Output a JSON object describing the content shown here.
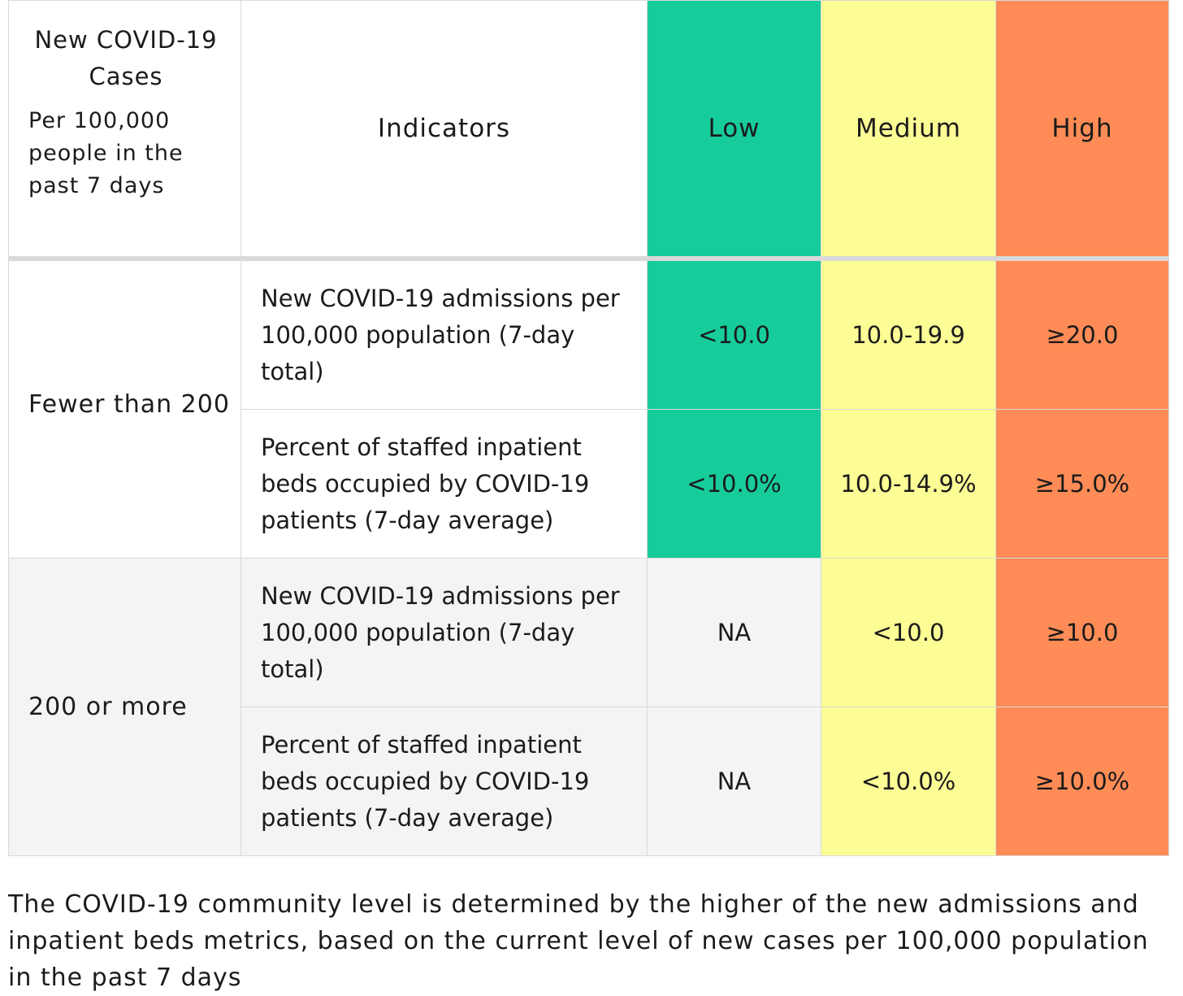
{
  "header": {
    "first_title": "New COVID-19 Cases",
    "first_subtitle": "Per 100,000 people in the past 7 days",
    "indicators": "Indicators",
    "low": "Low",
    "medium": "Medium",
    "high": "High"
  },
  "groups": [
    {
      "label": "Fewer than 200",
      "rows": [
        {
          "indicator": "New COVID-19 admissions per 100,000 population (7-day total)",
          "low": "<10.0",
          "medium": "10.0-19.9",
          "high": "≥20.0"
        },
        {
          "indicator": "Percent of staffed inpatient beds occupied by COVID-19 patients (7-day average)",
          "low": "<10.0%",
          "medium": "10.0-14.9%",
          "high": "≥15.0%"
        }
      ]
    },
    {
      "label": "200 or more",
      "rows": [
        {
          "indicator": "New COVID-19 admissions per 100,000 population (7-day total)",
          "low": "NA",
          "medium": "<10.0",
          "high": "≥10.0"
        },
        {
          "indicator": "Percent of staffed inpatient beds occupied by COVID-19 patients (7-day average)",
          "low": "NA",
          "medium": "<10.0%",
          "high": "≥10.0%"
        }
      ]
    }
  ],
  "caption": "The COVID-19 community level is determined by the higher of the new admissions and inpatient beds metrics, based on the current level of new cases per 100,000 population in the past 7 days",
  "colors": {
    "low": "#17cc9b",
    "medium": "#fdfd96",
    "high": "#ff8c56",
    "shaded_row": "#f4f4f4",
    "border": "#d9d9d9"
  }
}
